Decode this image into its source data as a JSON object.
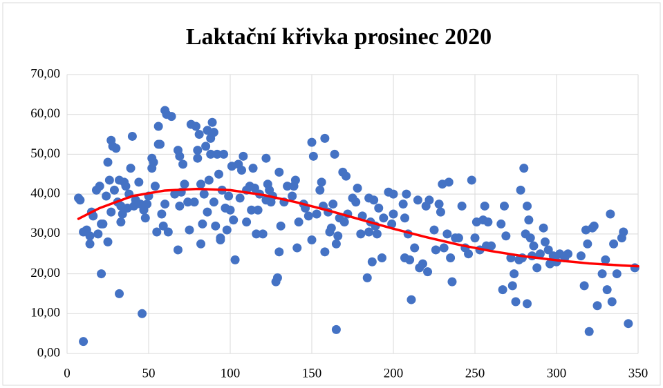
{
  "chart_data": {
    "type": "scatter",
    "title": "Laktační křivka prosinec 2020",
    "xlim": [
      0,
      350
    ],
    "xticks": [
      0,
      50,
      100,
      150,
      200,
      250,
      300,
      350
    ],
    "ylim": [
      0,
      70
    ],
    "yticks": [
      {
        "value": 0,
        "label": "0,00"
      },
      {
        "value": 10,
        "label": "10,00"
      },
      {
        "value": 20,
        "label": "20,00"
      },
      {
        "value": 30,
        "label": "30,00"
      },
      {
        "value": 40,
        "label": "40,00"
      },
      {
        "value": 50,
        "label": "50,00"
      },
      {
        "value": 60,
        "label": "60,00"
      },
      {
        "value": 70,
        "label": "70,00"
      }
    ],
    "grid": true,
    "series": [
      {
        "type": "scatter",
        "color": "#4472c4",
        "x": [
          7,
          8,
          10,
          10,
          12,
          14,
          14,
          15,
          16,
          18,
          19,
          20,
          21,
          21,
          22,
          24,
          25,
          25,
          26,
          27,
          27,
          28,
          29,
          30,
          31,
          32,
          32,
          33,
          33,
          34,
          35,
          36,
          37,
          38,
          39,
          40,
          41,
          42,
          44,
          45,
          46,
          47,
          48,
          49,
          50,
          52,
          52,
          53,
          54,
          55,
          56,
          56,
          57,
          58,
          59,
          60,
          60,
          61,
          62,
          64,
          66,
          68,
          68,
          69,
          69,
          70,
          71,
          72,
          74,
          75,
          76,
          78,
          79,
          80,
          80,
          81,
          82,
          82,
          83,
          84,
          85,
          86,
          86,
          87,
          88,
          88,
          89,
          90,
          90,
          91,
          92,
          93,
          94,
          94,
          95,
          96,
          97,
          98,
          99,
          100,
          101,
          102,
          103,
          105,
          106,
          107,
          108,
          110,
          110,
          112,
          113,
          114,
          115,
          116,
          117,
          118,
          120,
          122,
          122,
          123,
          124,
          125,
          126,
          128,
          129,
          130,
          130,
          131,
          133,
          135,
          138,
          139,
          140,
          141,
          142,
          145,
          146,
          148,
          150,
          150,
          151,
          153,
          155,
          156,
          157,
          158,
          158,
          160,
          161,
          162,
          163,
          164,
          165,
          165,
          166,
          167,
          169,
          170,
          171,
          172,
          175,
          177,
          178,
          180,
          181,
          184,
          185,
          185,
          186,
          187,
          188,
          189,
          190,
          191,
          193,
          194,
          197,
          199,
          200,
          200,
          206,
          207,
          207,
          208,
          209,
          210,
          211,
          213,
          215,
          216,
          218,
          220,
          221,
          222,
          225,
          226,
          228,
          229,
          230,
          231,
          233,
          234,
          235,
          236,
          238,
          240,
          242,
          244,
          246,
          248,
          250,
          251,
          253,
          255,
          256,
          257,
          258,
          260,
          266,
          267,
          268,
          269,
          272,
          273,
          274,
          275,
          277,
          278,
          279,
          280,
          281,
          282,
          282,
          283,
          284,
          285,
          286,
          288,
          290,
          292,
          293,
          295,
          296,
          298,
          300,
          302,
          305,
          307,
          315,
          317,
          318,
          319,
          320,
          322,
          323,
          325,
          328,
          330,
          331,
          333,
          334,
          335,
          337,
          340,
          341,
          344,
          348
        ],
        "values": [
          39,
          38.5,
          3,
          30.5,
          31,
          29.5,
          27.5,
          35.5,
          34.5,
          41,
          30,
          42,
          20,
          32.5,
          32.5,
          39.5,
          28,
          48,
          43.5,
          53.5,
          35.5,
          52,
          41,
          51.5,
          38,
          43.5,
          15,
          33,
          37,
          35,
          43,
          42,
          36.5,
          40,
          46.5,
          54.5,
          37,
          38.5,
          43,
          37.5,
          10,
          36,
          34,
          37.5,
          39.5,
          49,
          46.5,
          48,
          42,
          30.5,
          52.5,
          57,
          52.5,
          35,
          32,
          37.5,
          61,
          60,
          30.5,
          59.5,
          40,
          51,
          26,
          37,
          49.5,
          40.5,
          47.5,
          42.5,
          38,
          31,
          57.5,
          38,
          57,
          51,
          49,
          55,
          42.5,
          27.5,
          32.5,
          40,
          52,
          56,
          35.5,
          43.5,
          50,
          54,
          58,
          55.5,
          38,
          32,
          50,
          45,
          29,
          28.5,
          41,
          50,
          36.5,
          31,
          39.5,
          36,
          47,
          33.5,
          23.5,
          47.5,
          39,
          46,
          49.5,
          41,
          33,
          42,
          36,
          46.5,
          41.5,
          30,
          36,
          40,
          30,
          38.5,
          49,
          42.5,
          41,
          38,
          39.5,
          18,
          19,
          25.5,
          45.5,
          32,
          38,
          42,
          39.5,
          42,
          43.5,
          26.5,
          33,
          37.5,
          36.5,
          34.5,
          53,
          28.5,
          49.5,
          35,
          41,
          43,
          37,
          25.5,
          54,
          35.5,
          30.5,
          31.5,
          37.5,
          50,
          27.5,
          6,
          29.5,
          34,
          45.5,
          33,
          44.5,
          35,
          39,
          38,
          41.5,
          30,
          34.5,
          19,
          39,
          30.5,
          33,
          23,
          38.5,
          32,
          30,
          36.5,
          24,
          34,
          40.5,
          32.5,
          35,
          40,
          37.5,
          34,
          24,
          40,
          30,
          23.5,
          13.5,
          26.5,
          38.5,
          21.5,
          22.5,
          37,
          20.5,
          38.5,
          31,
          26,
          37.5,
          35.5,
          42.5,
          26.5,
          30,
          43,
          24,
          18,
          29,
          29,
          37,
          26.5,
          25,
          43.5,
          29,
          33,
          26,
          33.5,
          37,
          27,
          33,
          27,
          32.5,
          16,
          37,
          29.5,
          24,
          17,
          20,
          13,
          23.5,
          41,
          24,
          46.5,
          30,
          12.5,
          37,
          33.5,
          29,
          24.5,
          27,
          21.5,
          25,
          31.5,
          28,
          26,
          22.5,
          24.5,
          23,
          25,
          24,
          25,
          24.5,
          17,
          31,
          27.5,
          5.5,
          31.5,
          32,
          12,
          20,
          23.5,
          16,
          35,
          13,
          27.5,
          20,
          29,
          30.5,
          7.5,
          21.5
        ]
      },
      {
        "type": "line",
        "color": "#ff0000",
        "x": [
          7,
          20,
          40,
          60,
          80,
          100,
          120,
          140,
          160,
          180,
          200,
          220,
          240,
          260,
          280,
          300,
          320,
          340,
          350
        ],
        "values": [
          33.8,
          36.5,
          39.5,
          40.9,
          41.3,
          41.0,
          39.8,
          38.0,
          35.9,
          33.6,
          31.3,
          29.2,
          27.3,
          25.7,
          24.4,
          23.4,
          22.6,
          22.1,
          21.9
        ]
      }
    ]
  }
}
